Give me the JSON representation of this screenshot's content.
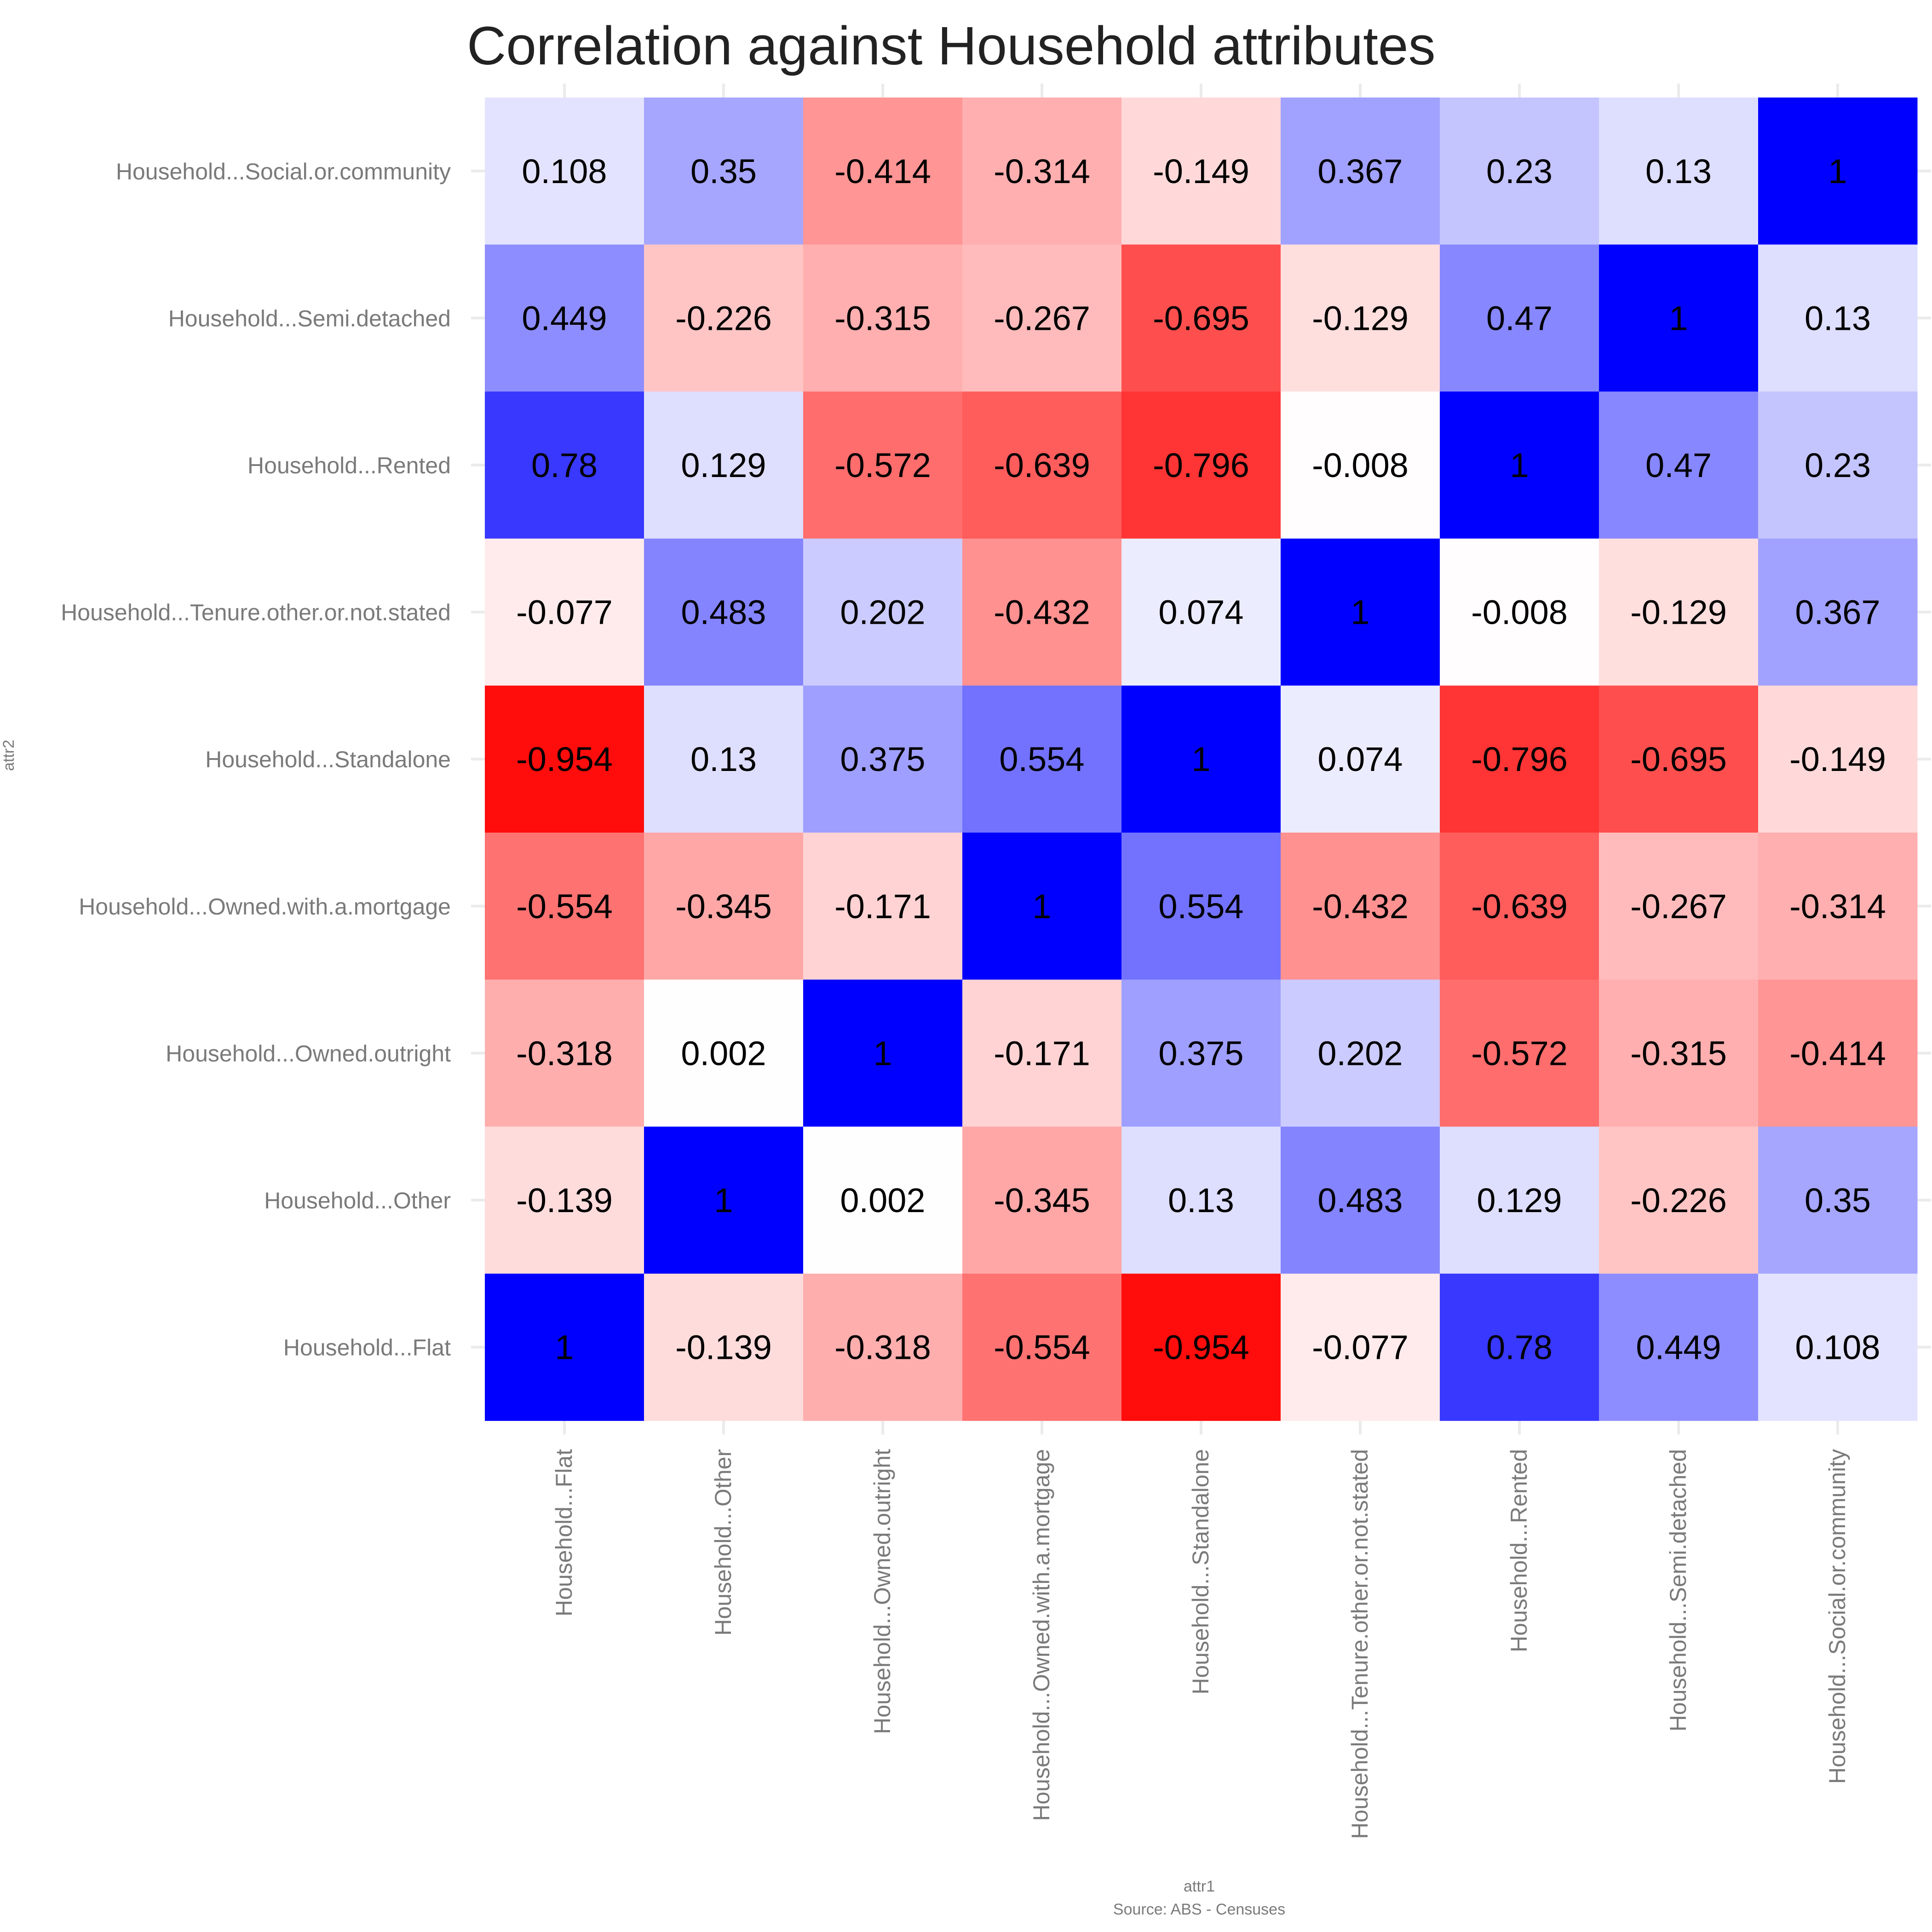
{
  "chart_data": {
    "type": "heatmap",
    "title": "Correlation against Household attributes",
    "xlabel": "attr1",
    "ylabel": "attr2",
    "caption": "Source: ABS - Censuses",
    "x_categories": [
      "Household...Flat",
      "Household...Other",
      "Household...Owned.outright",
      "Household...Owned.with.a.mortgage",
      "Household...Standalone",
      "Household...Tenure.other.or.not.stated",
      "Household...Rented",
      "Household...Semi.detached",
      "Household...Social.or.community"
    ],
    "y_categories_top_to_bottom": [
      "Household...Social.or.community",
      "Household...Semi.detached",
      "Household...Rented",
      "Household...Tenure.other.or.not.stated",
      "Household...Standalone",
      "Household...Owned.with.a.mortgage",
      "Household...Owned.outright",
      "Household...Other",
      "Household...Flat"
    ],
    "values": [
      [
        "0.108",
        "0.35",
        "-0.414",
        "-0.314",
        "-0.149",
        "0.367",
        "0.23",
        "0.13",
        "1"
      ],
      [
        "0.449",
        "-0.226",
        "-0.315",
        "-0.267",
        "-0.695",
        "-0.129",
        "0.47",
        "1",
        "0.13"
      ],
      [
        "0.78",
        "0.129",
        "-0.572",
        "-0.639",
        "-0.796",
        "-0.008",
        "1",
        "0.47",
        "0.23"
      ],
      [
        "-0.077",
        "0.483",
        "0.202",
        "-0.432",
        "0.074",
        "1",
        "-0.008",
        "-0.129",
        "0.367"
      ],
      [
        "-0.954",
        "0.13",
        "0.375",
        "0.554",
        "1",
        "0.074",
        "-0.796",
        "-0.695",
        "-0.149"
      ],
      [
        "-0.554",
        "-0.345",
        "-0.171",
        "1",
        "0.554",
        "-0.432",
        "-0.639",
        "-0.267",
        "-0.314"
      ],
      [
        "-0.318",
        "0.002",
        "1",
        "-0.171",
        "0.375",
        "0.202",
        "-0.572",
        "-0.315",
        "-0.414"
      ],
      [
        "-0.139",
        "1",
        "0.002",
        "-0.345",
        "0.13",
        "0.483",
        "0.129",
        "-0.226",
        "0.35"
      ],
      [
        "1",
        "-0.139",
        "-0.318",
        "-0.554",
        "-0.954",
        "-0.077",
        "0.78",
        "0.449",
        "0.108"
      ]
    ],
    "color_scale": {
      "low": "#ff0000",
      "mid": "#ffffff",
      "high": "#0000ff",
      "domain": [
        -1,
        0,
        1
      ]
    },
    "grid": true,
    "legend": "none"
  }
}
